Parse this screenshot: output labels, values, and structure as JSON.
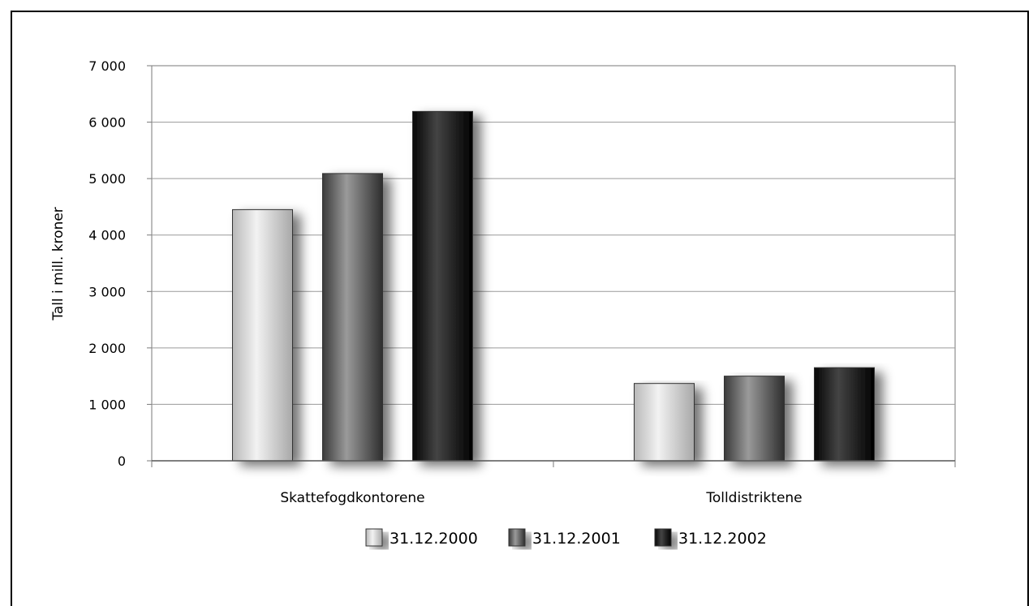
{
  "chart_data": {
    "type": "bar",
    "categories": [
      "Skattefogdkontorene",
      "Tolldistriktene"
    ],
    "series": [
      {
        "name": "31.12.2000",
        "values": [
          4450,
          1370
        ],
        "color": "#c8c8c8"
      },
      {
        "name": "31.12.2001",
        "values": [
          5090,
          1500
        ],
        "color": "#5a5a5a"
      },
      {
        "name": "31.12.2002",
        "values": [
          6190,
          1650
        ],
        "color": "#111111"
      }
    ],
    "ylabel": "Tall i mill. kroner",
    "ylim": [
      0,
      7000
    ],
    "yticks": [
      0,
      1000,
      2000,
      3000,
      4000,
      5000,
      6000,
      7000
    ],
    "ytick_labels": [
      "0",
      "1 000",
      "2 000",
      "3 000",
      "4 000",
      "5 000",
      "6 000",
      "7 000"
    ],
    "grid": true,
    "legend_position": "bottom"
  }
}
